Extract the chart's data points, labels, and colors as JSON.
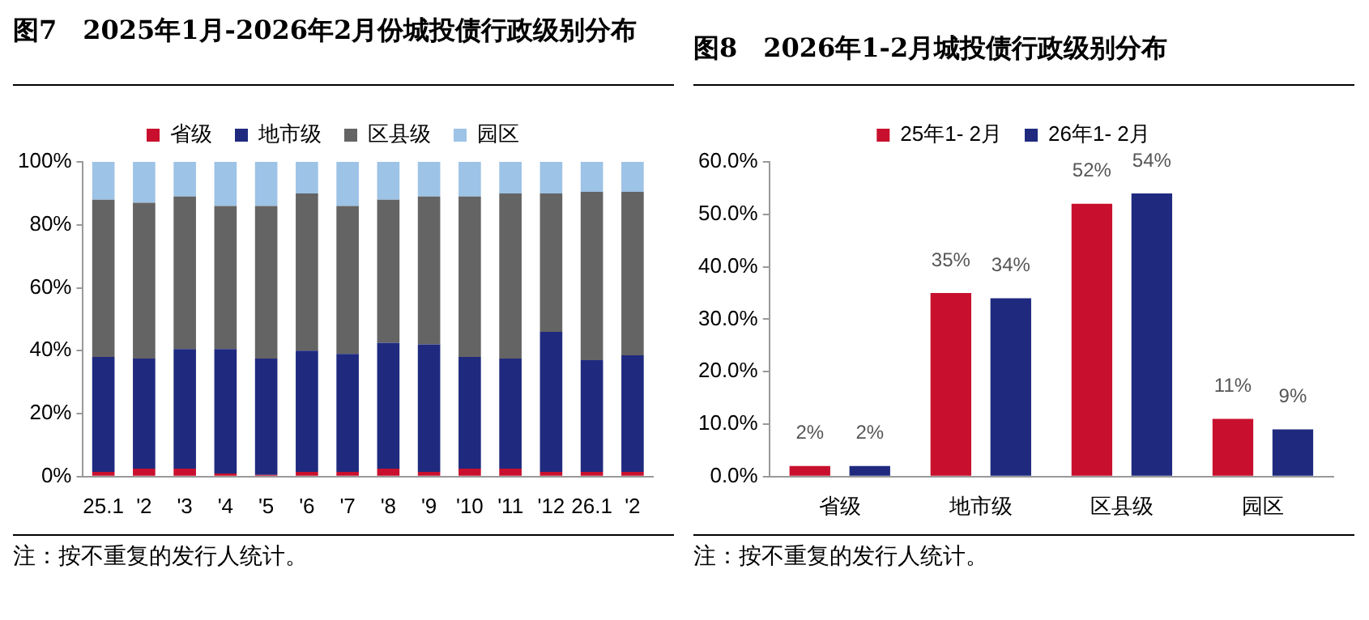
{
  "chart_data": [
    {
      "type": "bar",
      "title": "图7　2025年1月-2026年2月份城投债行政级别分布",
      "categories": [
        "25.1",
        "'2",
        "'3",
        "'4",
        "'5",
        "'6",
        "'7",
        "'8",
        "'9",
        "'10",
        "'11",
        "'12",
        "26.1",
        "'2"
      ],
      "stacked": true,
      "series": [
        {
          "name": "省级",
          "color": "#c8102e",
          "values": [
            1.5,
            2.5,
            2.5,
            1,
            0.5,
            1.5,
            1.5,
            2.5,
            1.5,
            2.5,
            2.5,
            1.5,
            1.5,
            1.5
          ]
        },
        {
          "name": "地市级",
          "color": "#1f2a7f",
          "values": [
            36.5,
            35,
            38,
            39.5,
            37,
            38.5,
            37.5,
            40,
            40.5,
            35.5,
            35,
            44.5,
            35.5,
            37
          ]
        },
        {
          "name": "区县级",
          "color": "#646464",
          "values": [
            50,
            49.5,
            48.5,
            45.5,
            48.5,
            50,
            47,
            45.5,
            47,
            51,
            52.5,
            44,
            53.5,
            52
          ]
        },
        {
          "name": "园区",
          "color": "#9dc3e6",
          "values": [
            12,
            13,
            11,
            14,
            14,
            10,
            14,
            12,
            11,
            11,
            10,
            10,
            9.5,
            9.5
          ]
        }
      ],
      "ylim": [
        0,
        100
      ],
      "yticks": [
        {
          "value": 0,
          "label": "0%"
        },
        {
          "value": 20,
          "label": "20%"
        },
        {
          "value": 40,
          "label": "40%"
        },
        {
          "value": 60,
          "label": "60%"
        },
        {
          "value": 80,
          "label": "80%"
        },
        {
          "value": 100,
          "label": "100%"
        }
      ],
      "grid": false,
      "legend": "top",
      "annotations": [
        "注：按不重复的发行人统计。"
      ]
    },
    {
      "type": "bar",
      "title": "图8　2026年1-2月城投债行政级别分布",
      "categories": [
        "省级",
        "地市级",
        "区县级",
        "园区"
      ],
      "series": [
        {
          "name": "25年1- 2月",
          "color": "#c8102e",
          "values": [
            2,
            35,
            52,
            11
          ],
          "value_labels": [
            "2%",
            "35%",
            "52%",
            "11%"
          ]
        },
        {
          "name": "26年1- 2月",
          "color": "#1f2a7f",
          "values": [
            2,
            34,
            54,
            9
          ],
          "value_labels": [
            "2%",
            "34%",
            "54%",
            "9%"
          ]
        }
      ],
      "ylim": [
        0,
        60
      ],
      "yticks": [
        {
          "value": 0,
          "label": "0.0%"
        },
        {
          "value": 10,
          "label": "10.0%"
        },
        {
          "value": 20,
          "label": "20.0%"
        },
        {
          "value": 30,
          "label": "30.0%"
        },
        {
          "value": 40,
          "label": "40.0%"
        },
        {
          "value": 50,
          "label": "50.0%"
        },
        {
          "value": 60,
          "label": "60.0%"
        }
      ],
      "grid": false,
      "legend": "top",
      "annotations": [
        "注：按不重复的发行人统计。"
      ]
    }
  ]
}
